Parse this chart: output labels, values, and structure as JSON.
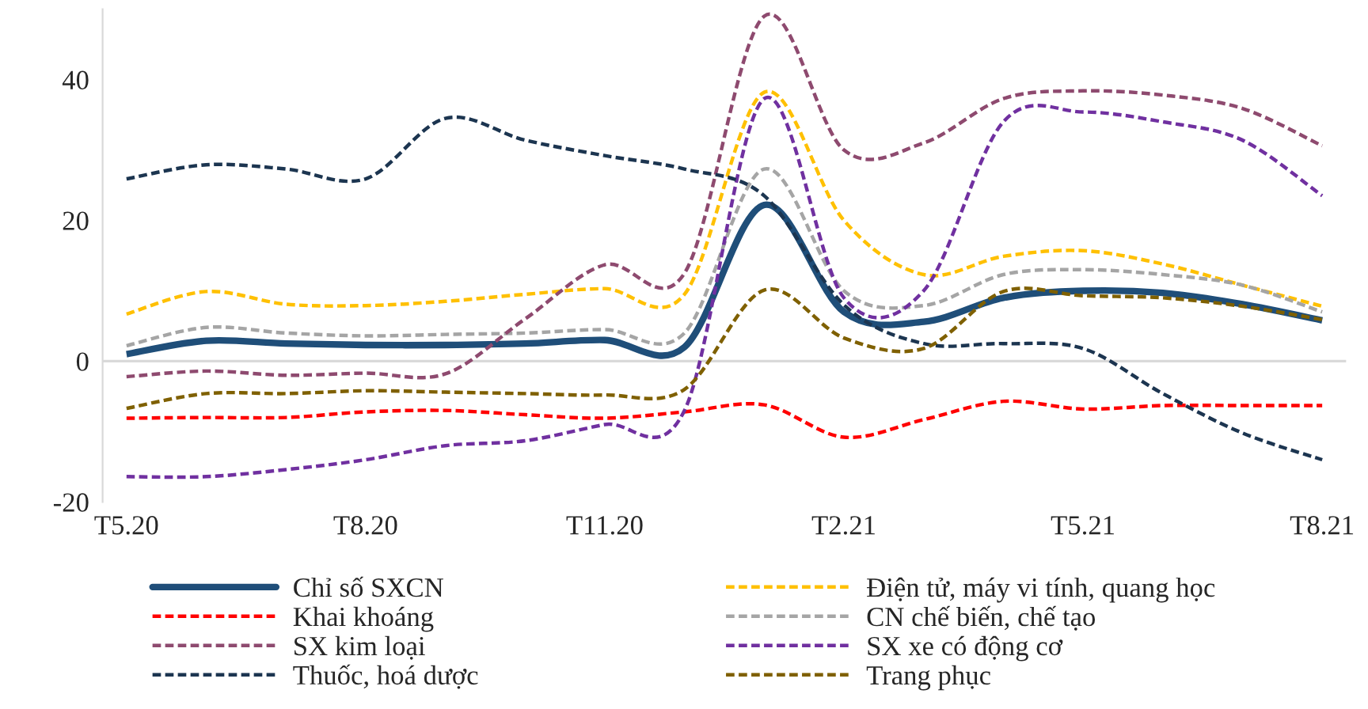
{
  "chart_data": {
    "type": "line",
    "categories": [
      "T5.20",
      null,
      null,
      "T8.20",
      null,
      null,
      "T11.20",
      null,
      null,
      "T2.21",
      null,
      null,
      "T5.21",
      null,
      null,
      "T8.21"
    ],
    "ylim": [
      -20,
      50
    ],
    "yticks": [
      -20,
      0,
      20,
      40
    ],
    "grid": false,
    "legend": "bottom",
    "marker": "none",
    "ref_lines": [
      {
        "axis": "y",
        "value": 0,
        "color": "#d9d9d9"
      }
    ],
    "series": [
      {
        "name": "Chỉ số SXCN",
        "color": "#1f4e79",
        "line_style": "solid",
        "values": [
          1,
          2.9,
          2.5,
          2.3,
          2.3,
          2.5,
          3,
          2,
          22.2,
          7,
          5.6,
          9,
          10,
          9.7,
          8.1,
          5.8
        ]
      },
      {
        "name": "Điện tử, máy vi tính, quang học",
        "color": "#ffc000",
        "line_style": "dashed",
        "values": [
          6.7,
          9.9,
          8.1,
          7.9,
          8.5,
          9.5,
          10.3,
          9.5,
          38.2,
          20,
          12.3,
          14.9,
          15.7,
          13.8,
          10.8,
          7.8
        ]
      },
      {
        "name": "Khai khoáng",
        "color": "#ff0000",
        "line_style": "dashed",
        "values": [
          -8.1,
          -8,
          -8,
          -7.2,
          -7,
          -7.6,
          -8.1,
          -7.2,
          -6.2,
          -10.8,
          -8.3,
          -5.7,
          -6.8,
          -6.3,
          -6.3,
          -6.3
        ]
      },
      {
        "name": "CN chế biến, chế tạo",
        "color": "#a5a5a5",
        "line_style": "dashed",
        "values": [
          2.2,
          4.8,
          4,
          3.6,
          3.8,
          4,
          4.5,
          4,
          27.3,
          10,
          7.9,
          12.3,
          13,
          12.3,
          10.8,
          7
        ]
      },
      {
        "name": "SX kim loại",
        "color": "#8e4a6f",
        "line_style": "dashed",
        "values": [
          -2.2,
          -1.4,
          -2,
          -1.7,
          -1.8,
          6,
          13.7,
          12.5,
          49,
          30,
          31,
          37.3,
          38.4,
          37.8,
          35.9,
          30.6
        ]
      },
      {
        "name": "SX xe có động cơ",
        "color": "#7030a0",
        "line_style": "dashed",
        "values": [
          -16.4,
          -16.4,
          -15.4,
          -14,
          -12,
          -11.3,
          -9,
          -7,
          37.3,
          9,
          10,
          34,
          35.4,
          34,
          31.4,
          23.5
        ]
      },
      {
        "name": "Thuốc, hoá dược",
        "color": "#1c3550",
        "line_style": "dashed",
        "values": [
          25.9,
          27.9,
          27.3,
          25.9,
          34.5,
          31.4,
          29.2,
          27.3,
          23.5,
          8,
          2.5,
          2.5,
          1.8,
          -4.6,
          -10.2,
          -14
        ]
      },
      {
        "name": "Trang phục",
        "color": "#7f6000",
        "line_style": "dashed",
        "values": [
          -6.7,
          -4.6,
          -4.6,
          -4.2,
          -4.4,
          -4.6,
          -4.8,
          -4,
          10.1,
          3.3,
          1.8,
          9.9,
          9.3,
          9,
          7.8,
          5.9
        ]
      }
    ]
  }
}
